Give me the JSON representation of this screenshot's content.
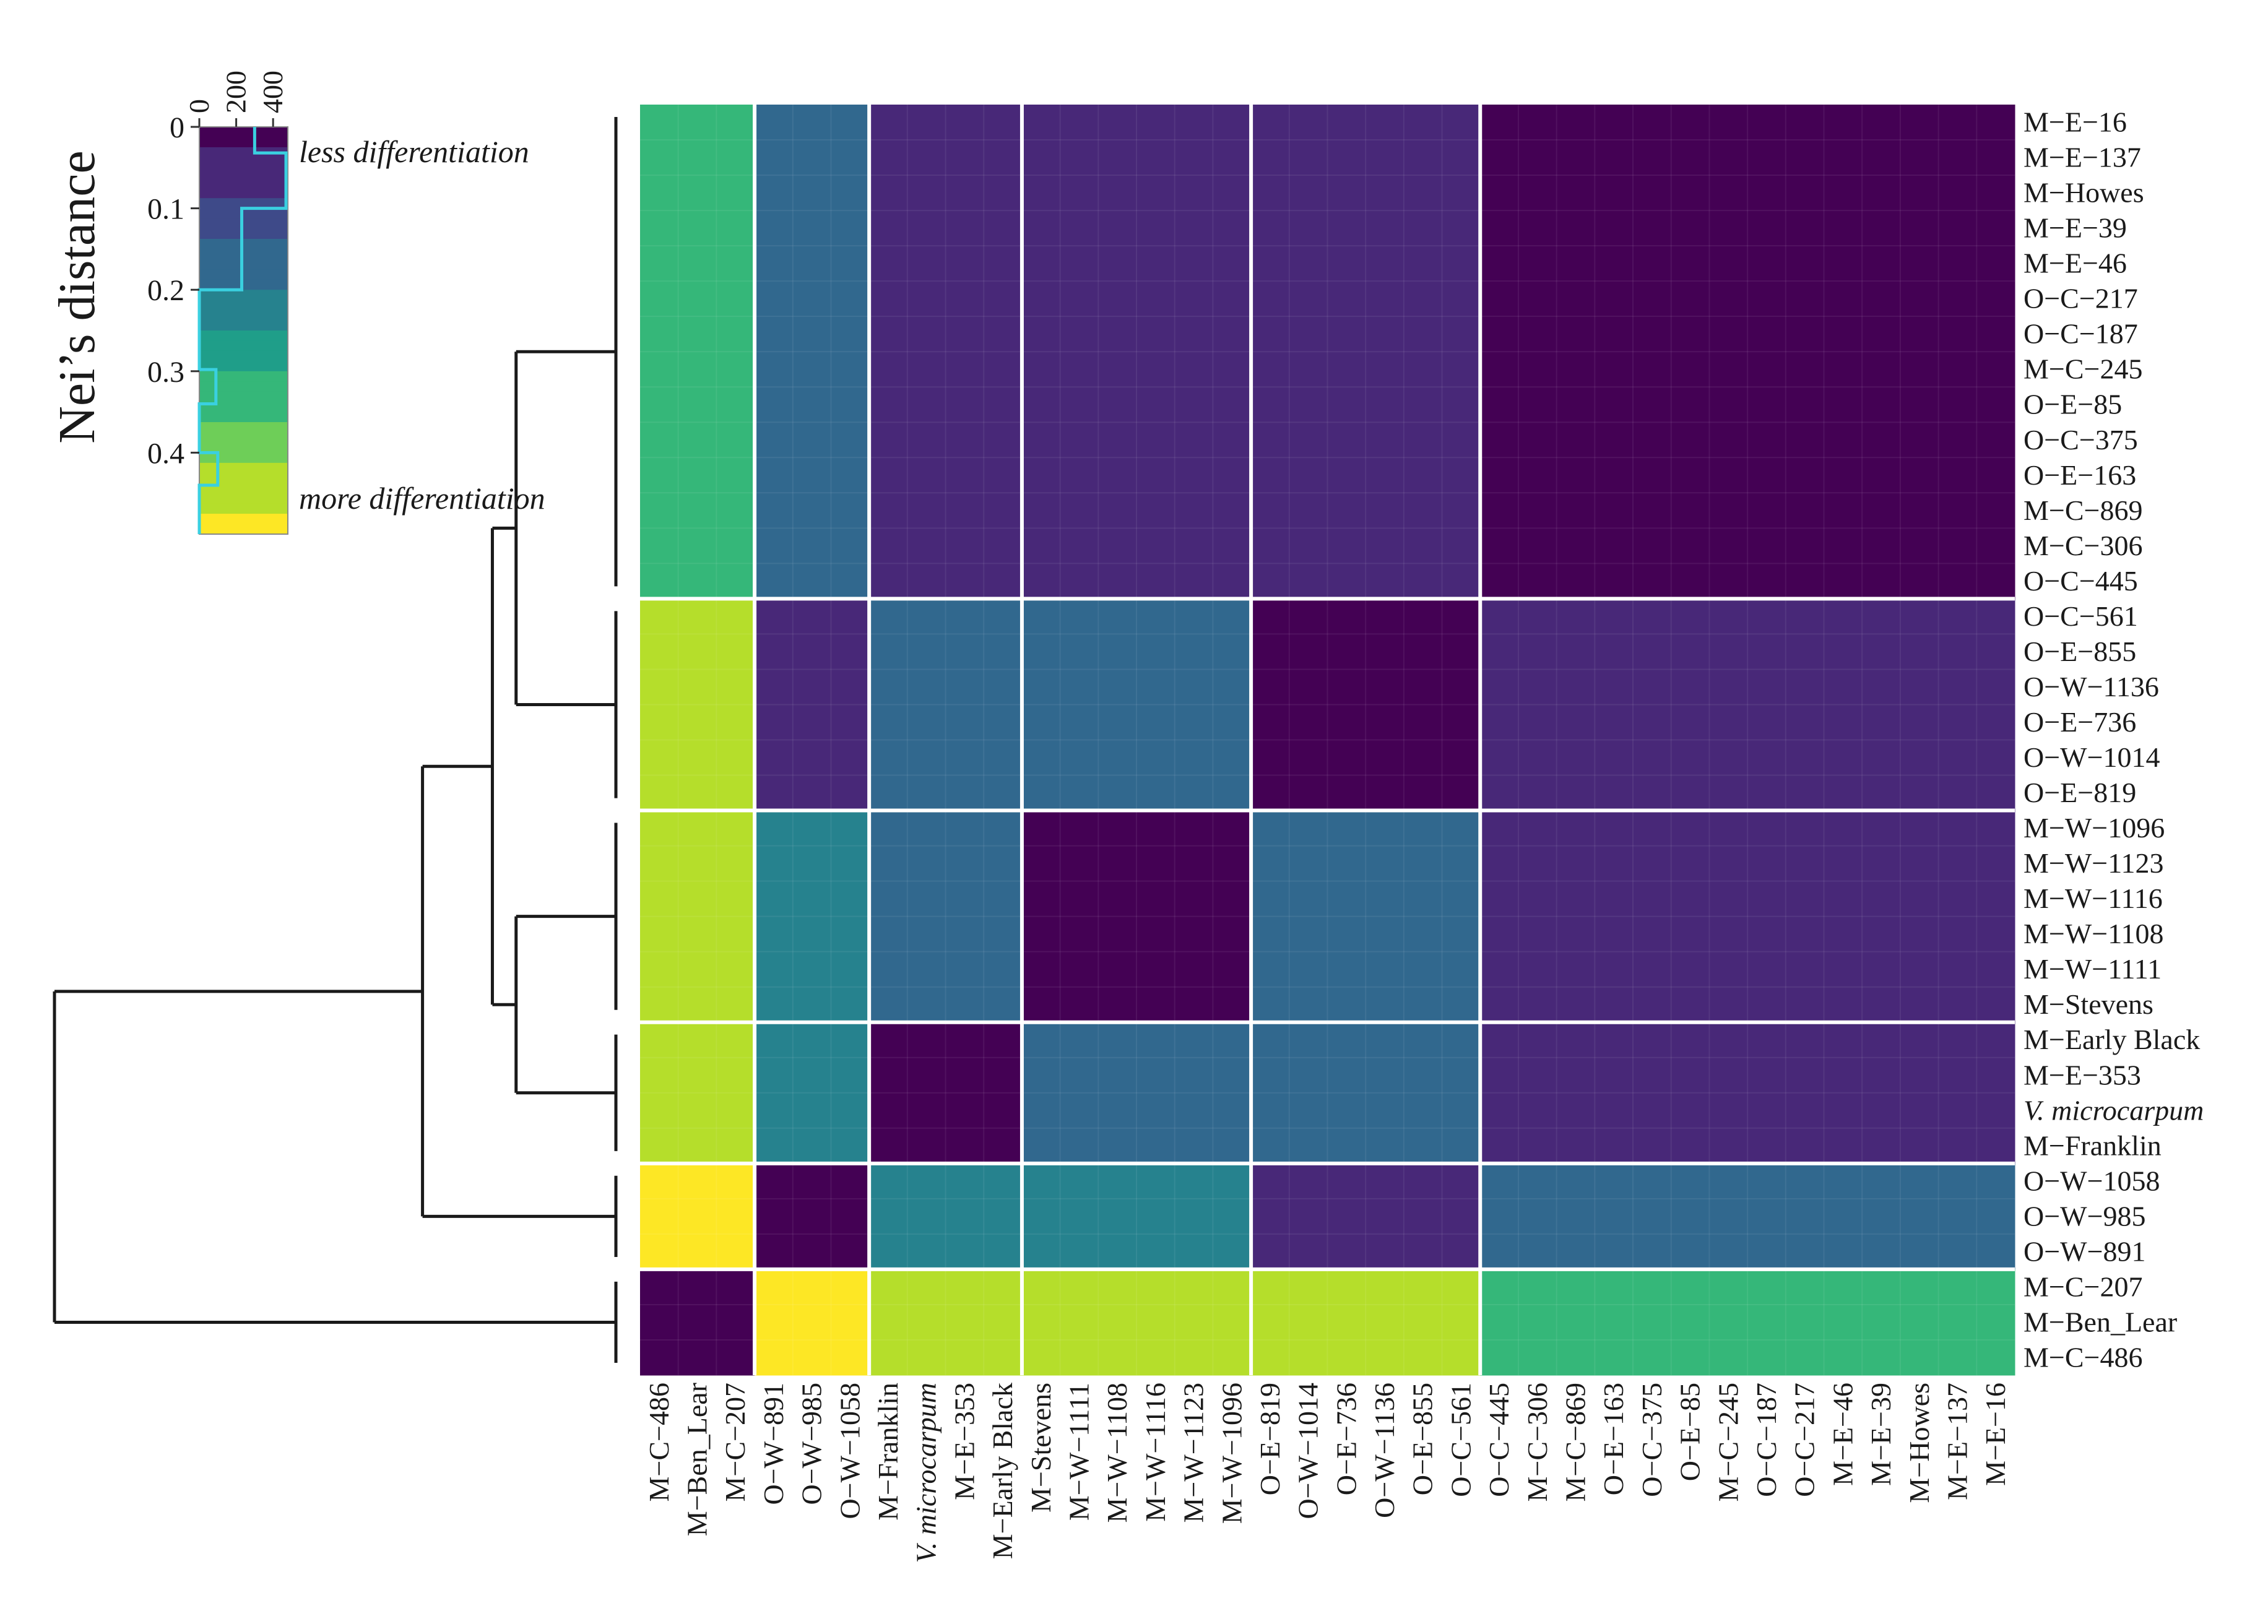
{
  "chart_data": {
    "type": "heatmap",
    "title": "",
    "color_scale": "viridis",
    "colors": {
      "viridis": [
        "#440154",
        "#482878",
        "#3e4a89",
        "#31688e",
        "#26828e",
        "#1f9e89",
        "#35b779",
        "#6ece58",
        "#b5de2b",
        "#fde725"
      ],
      "grid_line": "#ffffff",
      "dendrogram": "#1a1a1a",
      "histogram": "#3ad0e0"
    },
    "legend": {
      "title": "Nei’s distance",
      "placement": "top-left",
      "ticks": [
        "0",
        "0.1",
        "0.2",
        "0.3",
        "0.4"
      ],
      "tick_values": [
        0,
        0.1,
        0.2,
        0.3,
        0.4
      ],
      "range": [
        0,
        0.5
      ],
      "count_ticks": [
        "0",
        "200",
        "400"
      ],
      "count_tick_values": [
        0,
        200,
        400
      ],
      "count_range": [
        0,
        480
      ],
      "less_label": "less differentiation",
      "more_label": "more differentiation",
      "histogram": [
        {
          "from": 0.0,
          "to": 0.032,
          "count": 300
        },
        {
          "from": 0.032,
          "to": 0.1,
          "count": 470
        },
        {
          "from": 0.1,
          "to": 0.2,
          "count": 230
        },
        {
          "from": 0.2,
          "to": 0.298,
          "count": 0
        },
        {
          "from": 0.298,
          "to": 0.34,
          "count": 90
        },
        {
          "from": 0.34,
          "to": 0.4,
          "count": 0
        },
        {
          "from": 0.4,
          "to": 0.44,
          "count": 100
        },
        {
          "from": 0.44,
          "to": 0.5,
          "count": 0
        }
      ]
    },
    "groups": [
      {
        "size": 14
      },
      {
        "size": 6
      },
      {
        "size": 6
      },
      {
        "size": 4
      },
      {
        "size": 3
      },
      {
        "size": 3
      }
    ],
    "rows": [
      "M−E−16",
      "M−E−137",
      "M−Howes",
      "M−E−39",
      "M−E−46",
      "O−C−217",
      "O−C−187",
      "M−C−245",
      "O−E−85",
      "O−C−375",
      "O−E−163",
      "M−C−869",
      "M−C−306",
      "O−C−445",
      "O−C−561",
      "O−E−855",
      "O−W−1136",
      "O−E−736",
      "O−W−1014",
      "O−E−819",
      "M−W−1096",
      "M−W−1123",
      "M−W−1116",
      "M−W−1108",
      "M−W−1111",
      "M−Stevens",
      "M−Early Black",
      "M−E−353",
      "V. microcarpum",
      "M−Franklin",
      "O−W−1058",
      "O−W−985",
      "O−W−891",
      "M−C−207",
      "M−Ben_Lear",
      "M−C−486"
    ],
    "columns": [
      "M−C−486",
      "M−Ben_Lear",
      "M−C−207",
      "O−W−891",
      "O−W−985",
      "O−W−1058",
      "M−Franklin",
      "V. microcarpum",
      "M−E−353",
      "M−Early Black",
      "M−Stevens",
      "M−W−1111",
      "M−W−1108",
      "M−W−1116",
      "M−W−1123",
      "M−W−1096",
      "O−E−819",
      "O−W−1014",
      "O−E−736",
      "O−W−1136",
      "O−E−855",
      "O−C−561",
      "O−C−445",
      "M−C−306",
      "M−C−869",
      "O−E−163",
      "O−C−375",
      "O−E−85",
      "M−C−245",
      "O−C−187",
      "O−C−217",
      "M−E−46",
      "M−E−39",
      "M−Howes",
      "M−E−137",
      "M−E−16"
    ],
    "italic_labels": [
      "V. microcarpum"
    ],
    "row_group_of_item": "rows grouped top-to-bottom as [14,6,6,4,3,3]; columns grouped left-to-right as [3,3,4,6,6,14]",
    "block_values": [
      [
        0.36,
        0.17,
        0.05,
        0.05,
        0.07,
        0.0
      ],
      [
        0.44,
        0.05,
        0.17,
        0.17,
        0.0,
        0.07
      ],
      [
        0.44,
        0.22,
        0.17,
        0.0,
        0.17,
        0.07
      ],
      [
        0.44,
        0.22,
        0.0,
        0.17,
        0.17,
        0.07
      ],
      [
        0.5,
        0.0,
        0.22,
        0.22,
        0.07,
        0.15
      ],
      [
        0.0,
        0.5,
        0.44,
        0.44,
        0.44,
        0.36
      ]
    ],
    "block_values_note": "",
    "dendrogram": {
      "clusters": [
        {
          "id": "A",
          "rows": [
            0,
            13
          ]
        },
        {
          "id": "B",
          "rows": [
            14,
            19
          ]
        },
        {
          "id": "C",
          "rows": [
            20,
            25
          ]
        },
        {
          "id": "D",
          "rows": [
            26,
            29
          ]
        },
        {
          "id": "E",
          "rows": [
            30,
            32
          ]
        },
        {
          "id": "F",
          "rows": [
            33,
            35
          ]
        }
      ],
      "merges": [
        {
          "id": "AB",
          "children": [
            "A",
            "B"
          ],
          "height": 0.16
        },
        {
          "id": "CD",
          "children": [
            "C",
            "D"
          ],
          "height": 0.16
        },
        {
          "id": "ABCD",
          "children": [
            "AB",
            "CD"
          ],
          "height": 0.198
        },
        {
          "id": "ABCDE",
          "children": [
            "ABCD",
            "E"
          ],
          "height": 0.31
        },
        {
          "id": "ALL",
          "children": [
            "ABCDE",
            "F"
          ],
          "height": 0.9
        }
      ],
      "max_height": 0.9
    }
  }
}
